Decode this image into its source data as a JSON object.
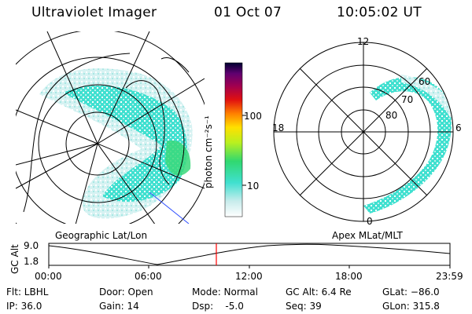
{
  "header": {
    "instrument": "Ultraviolet Imager",
    "date": "01 Oct 07",
    "time": "10:05:02 UT"
  },
  "colorbar": {
    "unit_label": "photon cm⁻²s⁻¹",
    "ticks": [
      "100",
      "10"
    ]
  },
  "left_map": {
    "caption": "Geographic Lat/Lon"
  },
  "right_map": {
    "caption": "Apex MLat/MLT",
    "mlt_labels": {
      "top": "12",
      "left": "18",
      "right": "6",
      "bottom": "0"
    },
    "lat_labels": [
      "60",
      "70",
      "80"
    ]
  },
  "altitude_plot": {
    "ylabel": "GC Alt",
    "yticks": [
      "9.0",
      "1.8"
    ],
    "xticks": [
      "00:00",
      "06:00",
      "12:00",
      "18:00",
      "23:59"
    ],
    "current_time_marker_color": "#ff0000",
    "current_time_fraction": 0.42
  },
  "status": {
    "filter": "Flt: LBHL",
    "ip": "IP: 36.0",
    "door": "Door: Open",
    "gain": "Gain: 14",
    "mode": "Mode: Normal",
    "dsp": "Dsp:    -5.0",
    "gc_alt": "GC Alt: 6.4 Re",
    "seq": "Seq: 39",
    "glat": "GLat: −86.0",
    "glon": "GLon: 315.8"
  },
  "colors": {
    "aurora_main": "#40e0d0",
    "aurora_dim": "#c8ecec",
    "aurora_bright": "#33dd66"
  }
}
